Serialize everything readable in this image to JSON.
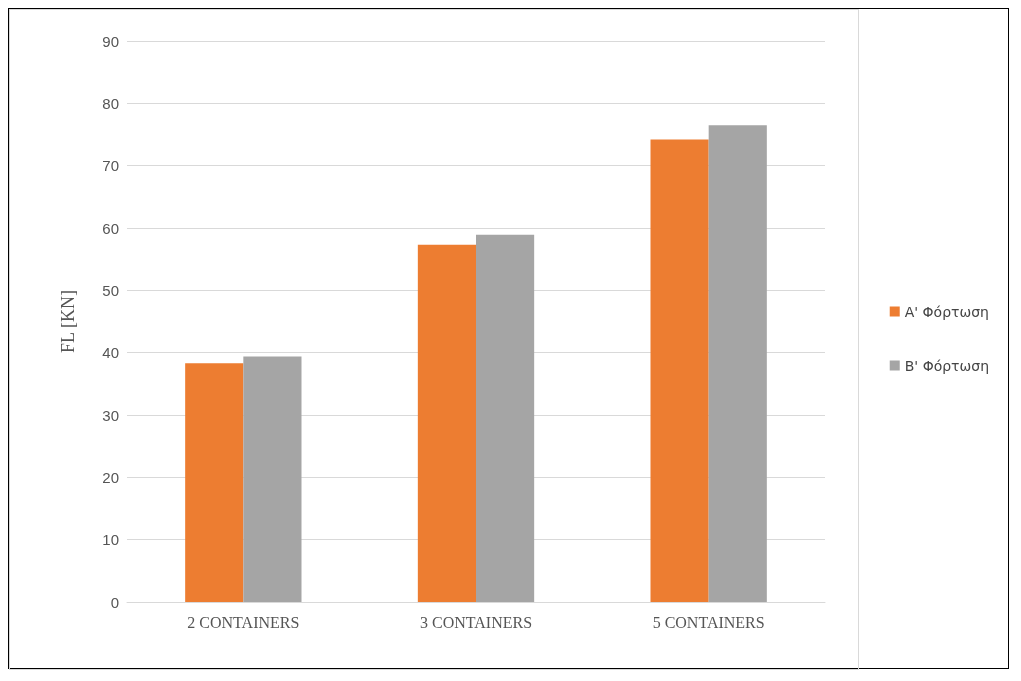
{
  "chart_data": {
    "type": "bar",
    "ylabel": "FL [KN]",
    "categories": [
      "2 CONTAINERS",
      "3 CONTAINERS",
      "5 CONTAINERS"
    ],
    "series": [
      {
        "name": "A' Φόρτωση",
        "color": "#ed7d31",
        "values": [
          38.3,
          57.3,
          74.2
        ]
      },
      {
        "name": "B' Φόρτωση",
        "color": "#a5a5a5",
        "values": [
          39.4,
          58.9,
          76.5
        ]
      }
    ],
    "ylim": [
      0,
      90
    ],
    "yticks": [
      0,
      10,
      20,
      30,
      40,
      50,
      60,
      70,
      80,
      90
    ],
    "grid": "y",
    "legend": "right"
  }
}
